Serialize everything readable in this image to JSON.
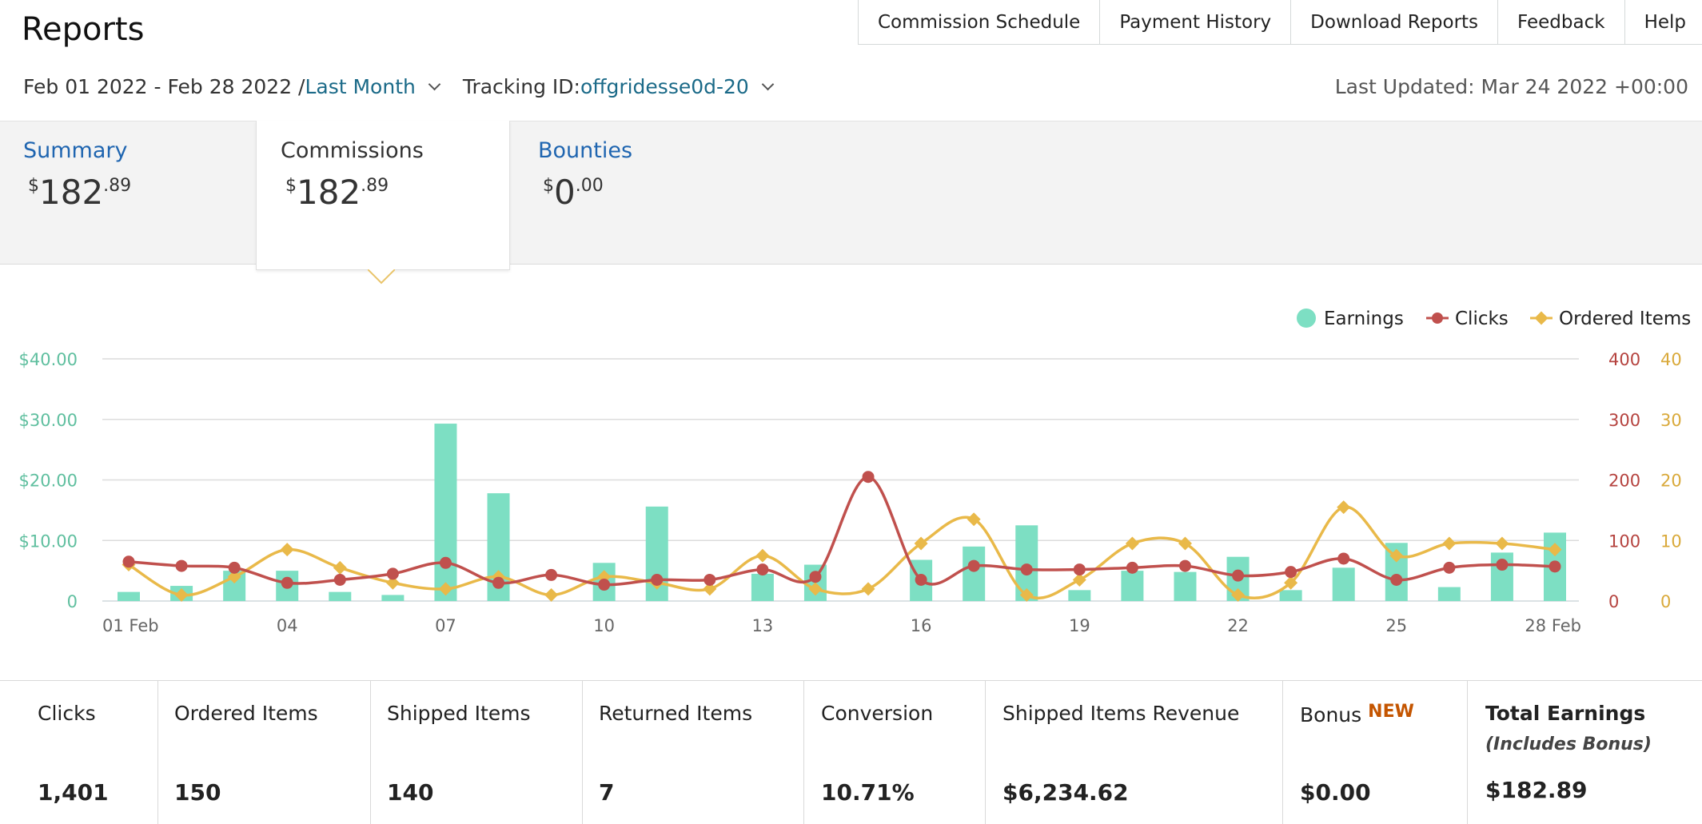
{
  "header": {
    "title": "Reports"
  },
  "top_nav": [
    "Commission Schedule",
    "Payment History",
    "Download Reports",
    "Feedback",
    "Help"
  ],
  "filters": {
    "date_range": "Feb 01 2022 - Feb 28 2022 / ",
    "period": "Last Month",
    "tracking_label": "Tracking ID: ",
    "tracking_id": "offgridesse0d-20",
    "last_updated": "Last Updated: Mar 24 2022 +00:00"
  },
  "tabs": {
    "summary": {
      "label": "Summary",
      "currency": "$",
      "whole": "182",
      "cents": ".89"
    },
    "commissions": {
      "label": "Commissions",
      "currency": "$",
      "whole": "182",
      "cents": ".89"
    },
    "bounties": {
      "label": "Bounties",
      "currency": "$",
      "whole": "0",
      "cents": ".00"
    }
  },
  "colors": {
    "earnings": "#7ddfc3",
    "clicks": "#c0504d",
    "ordered": "#e9b949",
    "earnings_axis": "#5fbf9f",
    "clicks_axis": "#b5433f",
    "ordered_axis": "#d9a93a"
  },
  "chart_data": {
    "type": "bar+line",
    "legend": [
      "Earnings",
      "Clicks",
      "Ordered Items"
    ],
    "legend_position": "top-right",
    "x_ticks": [
      "01 Feb",
      "04",
      "07",
      "10",
      "13",
      "16",
      "19",
      "22",
      "25",
      "28 Feb"
    ],
    "y_left_ticks": [
      "0",
      "$10.00",
      "$20.00",
      "$30.00",
      "$40.00"
    ],
    "y_right_clicks_ticks": [
      "0",
      "100",
      "200",
      "300",
      "400"
    ],
    "y_right_ordered_ticks": [
      "0",
      "10",
      "20",
      "30",
      "40"
    ],
    "y_left_range": [
      0,
      40
    ],
    "y_clicks_range": [
      0,
      400
    ],
    "y_ordered_range": [
      0,
      40
    ],
    "days": [
      1,
      2,
      3,
      4,
      5,
      6,
      7,
      8,
      9,
      10,
      11,
      12,
      13,
      14,
      15,
      16,
      17,
      18,
      19,
      20,
      21,
      22,
      23,
      24,
      25,
      26,
      27,
      28
    ],
    "earnings": [
      1.5,
      2.5,
      5,
      5,
      1.5,
      1,
      29.3,
      17.8,
      0,
      6.3,
      15.6,
      0,
      4.5,
      6,
      0,
      6.8,
      9,
      12.5,
      1.8,
      5,
      4.8,
      7.3,
      1.8,
      5.5,
      9.6,
      2.3,
      8,
      11.3
    ],
    "clicks": [
      65,
      58,
      55,
      30,
      35,
      45,
      63,
      30,
      43,
      27,
      35,
      35,
      52,
      40,
      205,
      35,
      58,
      52,
      52,
      55,
      58,
      42,
      48,
      70,
      35,
      55,
      60,
      57
    ],
    "ordered_items": [
      6,
      1,
      4,
      8.5,
      5.5,
      3,
      2,
      4,
      1,
      4,
      3,
      2,
      7.5,
      2,
      2,
      9.5,
      13.5,
      1,
      3.5,
      9.5,
      9.5,
      1,
      3,
      15.5,
      7.5,
      9.5,
      9.5,
      8.5
    ]
  },
  "stats": [
    {
      "label": "Clicks",
      "value": "1,401"
    },
    {
      "label": "Ordered Items",
      "value": "150"
    },
    {
      "label": "Shipped Items",
      "value": "140"
    },
    {
      "label": "Returned Items",
      "value": "7"
    },
    {
      "label": "Conversion",
      "value": "10.71%"
    },
    {
      "label": "Shipped Items Revenue",
      "value": "$6,234.62"
    },
    {
      "label": "Bonus",
      "badge": "NEW",
      "value": "$0.00"
    },
    {
      "label": "Total Earnings",
      "sub": "(Includes Bonus)",
      "value": "$182.89"
    }
  ]
}
